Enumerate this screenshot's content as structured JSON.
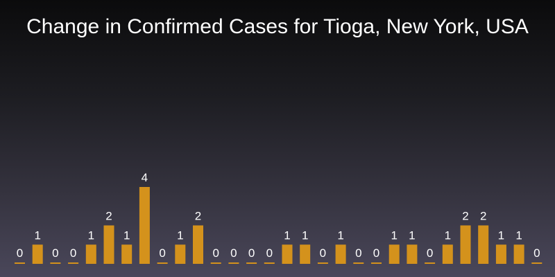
{
  "chart_data": {
    "type": "bar",
    "title": "Change in Confirmed Cases for Tioga, New York, USA",
    "xlabel": "",
    "ylabel": "",
    "ylim": [
      0,
      4
    ],
    "grid": false,
    "bar_color": "#d4921c",
    "background_top_color": "#0b0b0c",
    "background_bottom_color": "#4a475a",
    "values": [
      0,
      1,
      0,
      0,
      1,
      2,
      1,
      4,
      0,
      1,
      2,
      0,
      0,
      0,
      0,
      1,
      1,
      0,
      1,
      0,
      0,
      1,
      1,
      0,
      1,
      2,
      2,
      1,
      1,
      0
    ],
    "data_labels": [
      "0",
      "1",
      "0",
      "0",
      "1",
      "2",
      "1",
      "4",
      "0",
      "1",
      "2",
      "0",
      "0",
      "0",
      "0",
      "1",
      "1",
      "0",
      "1",
      "0",
      "0",
      "1",
      "1",
      "0",
      "1",
      "2",
      "2",
      "1",
      "1",
      "0"
    ]
  }
}
